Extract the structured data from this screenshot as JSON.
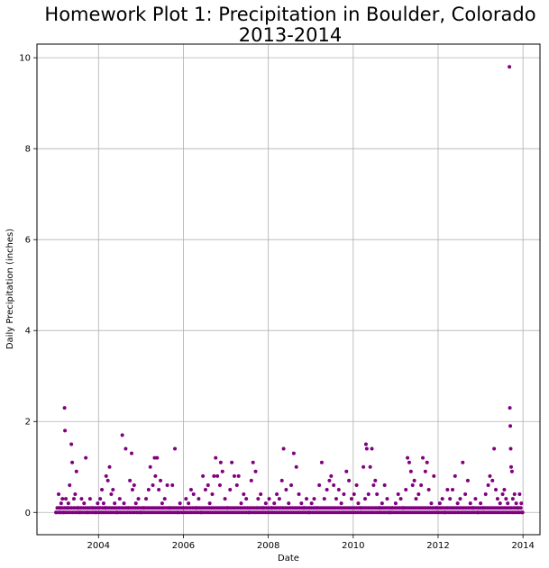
{
  "chart_data": {
    "type": "scatter",
    "title_line1": "Homework Plot 1: Precipitation in Boulder, Colorado",
    "title_line2": "2013-2014",
    "xlabel": "Date",
    "ylabel": "Daily Precipitation (inches)",
    "xlim": [
      2002.55,
      2014.4
    ],
    "ylim": [
      -0.49,
      10.3
    ],
    "x_ticks": [
      2004,
      2006,
      2008,
      2010,
      2012,
      2014
    ],
    "x_tick_labels": [
      "2004",
      "2006",
      "2008",
      "2010",
      "2012",
      "2014"
    ],
    "y_ticks": [
      0,
      2,
      4,
      6,
      8,
      10
    ],
    "y_tick_labels": [
      "0",
      "2",
      "4",
      "6",
      "8",
      "10"
    ],
    "grid": true,
    "marker_color": "#800080",
    "series": [
      {
        "points": [
          [
            2003.0,
            0.0
          ],
          [
            2003.06,
            0.4
          ],
          [
            2003.08,
            0.1
          ],
          [
            2003.1,
            0.0
          ],
          [
            2003.12,
            0.2
          ],
          [
            2003.15,
            0.3
          ],
          [
            2003.18,
            0.0
          ],
          [
            2003.2,
            2.3
          ],
          [
            2003.21,
            1.8
          ],
          [
            2003.23,
            0.3
          ],
          [
            2003.26,
            0.1
          ],
          [
            2003.29,
            0.2
          ],
          [
            2003.32,
            0.6
          ],
          [
            2003.36,
            1.5
          ],
          [
            2003.38,
            1.1
          ],
          [
            2003.42,
            0.3
          ],
          [
            2003.45,
            0.4
          ],
          [
            2003.48,
            0.9
          ],
          [
            2003.52,
            0.1
          ],
          [
            2003.56,
            0.0
          ],
          [
            2003.6,
            0.3
          ],
          [
            2003.66,
            0.2
          ],
          [
            2003.7,
            1.2
          ],
          [
            2003.74,
            0.0
          ],
          [
            2003.8,
            0.3
          ],
          [
            2003.86,
            0.1
          ],
          [
            2003.93,
            0.0
          ],
          [
            2003.98,
            0.2
          ],
          [
            2004.04,
            0.3
          ],
          [
            2004.08,
            0.5
          ],
          [
            2004.12,
            0.2
          ],
          [
            2004.16,
            0.1
          ],
          [
            2004.18,
            0.8
          ],
          [
            2004.22,
            0.7
          ],
          [
            2004.26,
            1.0
          ],
          [
            2004.3,
            0.4
          ],
          [
            2004.34,
            0.5
          ],
          [
            2004.38,
            0.2
          ],
          [
            2004.44,
            0.0
          ],
          [
            2004.5,
            0.3
          ],
          [
            2004.56,
            1.7
          ],
          [
            2004.6,
            0.2
          ],
          [
            2004.64,
            1.4
          ],
          [
            2004.7,
            0.1
          ],
          [
            2004.74,
            0.7
          ],
          [
            2004.78,
            1.3
          ],
          [
            2004.8,
            0.5
          ],
          [
            2004.84,
            0.6
          ],
          [
            2004.88,
            0.2
          ],
          [
            2004.94,
            0.3
          ],
          [
            2005.0,
            0.0
          ],
          [
            2005.06,
            0.1
          ],
          [
            2005.12,
            0.3
          ],
          [
            2005.18,
            0.5
          ],
          [
            2005.22,
            1.0
          ],
          [
            2005.28,
            0.6
          ],
          [
            2005.32,
            1.2
          ],
          [
            2005.34,
            0.8
          ],
          [
            2005.38,
            1.2
          ],
          [
            2005.42,
            0.5
          ],
          [
            2005.46,
            0.7
          ],
          [
            2005.5,
            0.2
          ],
          [
            2005.56,
            0.3
          ],
          [
            2005.62,
            0.6
          ],
          [
            2005.68,
            0.1
          ],
          [
            2005.74,
            0.6
          ],
          [
            2005.8,
            1.4
          ],
          [
            2005.86,
            0.0
          ],
          [
            2005.92,
            0.2
          ],
          [
            2006.0,
            0.1
          ],
          [
            2006.06,
            0.3
          ],
          [
            2006.12,
            0.2
          ],
          [
            2006.18,
            0.5
          ],
          [
            2006.24,
            0.4
          ],
          [
            2006.3,
            0.1
          ],
          [
            2006.36,
            0.3
          ],
          [
            2006.42,
            0.0
          ],
          [
            2006.46,
            0.8
          ],
          [
            2006.52,
            0.5
          ],
          [
            2006.58,
            0.6
          ],
          [
            2006.62,
            0.2
          ],
          [
            2006.68,
            0.4
          ],
          [
            2006.72,
            0.8
          ],
          [
            2006.76,
            1.2
          ],
          [
            2006.8,
            0.8
          ],
          [
            2006.86,
            0.6
          ],
          [
            2006.88,
            1.1
          ],
          [
            2006.92,
            0.9
          ],
          [
            2006.98,
            0.3
          ],
          [
            2007.04,
            0.1
          ],
          [
            2007.1,
            0.5
          ],
          [
            2007.14,
            1.1
          ],
          [
            2007.2,
            0.8
          ],
          [
            2007.26,
            0.6
          ],
          [
            2007.3,
            0.8
          ],
          [
            2007.36,
            0.2
          ],
          [
            2007.42,
            0.4
          ],
          [
            2007.48,
            0.3
          ],
          [
            2007.54,
            0.0
          ],
          [
            2007.6,
            0.7
          ],
          [
            2007.64,
            1.1
          ],
          [
            2007.7,
            0.9
          ],
          [
            2007.76,
            0.3
          ],
          [
            2007.82,
            0.4
          ],
          [
            2007.88,
            0.1
          ],
          [
            2007.94,
            0.2
          ],
          [
            2008.02,
            0.3
          ],
          [
            2008.08,
            0.1
          ],
          [
            2008.14,
            0.2
          ],
          [
            2008.2,
            0.4
          ],
          [
            2008.26,
            0.3
          ],
          [
            2008.32,
            0.7
          ],
          [
            2008.36,
            1.4
          ],
          [
            2008.42,
            0.5
          ],
          [
            2008.48,
            0.2
          ],
          [
            2008.54,
            0.6
          ],
          [
            2008.6,
            1.3
          ],
          [
            2008.66,
            1.0
          ],
          [
            2008.72,
            0.4
          ],
          [
            2008.78,
            0.2
          ],
          [
            2008.84,
            0.1
          ],
          [
            2008.9,
            0.3
          ],
          [
            2008.96,
            0.0
          ],
          [
            2009.02,
            0.2
          ],
          [
            2009.08,
            0.3
          ],
          [
            2009.14,
            0.1
          ],
          [
            2009.2,
            0.6
          ],
          [
            2009.26,
            1.1
          ],
          [
            2009.32,
            0.3
          ],
          [
            2009.38,
            0.5
          ],
          [
            2009.44,
            0.7
          ],
          [
            2009.48,
            0.8
          ],
          [
            2009.54,
            0.6
          ],
          [
            2009.6,
            0.3
          ],
          [
            2009.66,
            0.5
          ],
          [
            2009.72,
            0.2
          ],
          [
            2009.78,
            0.4
          ],
          [
            2009.84,
            0.9
          ],
          [
            2009.9,
            0.7
          ],
          [
            2009.96,
            0.3
          ],
          [
            2010.02,
            0.4
          ],
          [
            2010.08,
            0.6
          ],
          [
            2010.12,
            0.2
          ],
          [
            2010.18,
            0.1
          ],
          [
            2010.24,
            1.0
          ],
          [
            2010.28,
            0.3
          ],
          [
            2010.3,
            1.5
          ],
          [
            2010.32,
            1.4
          ],
          [
            2010.36,
            0.4
          ],
          [
            2010.4,
            1.0
          ],
          [
            2010.44,
            1.4
          ],
          [
            2010.48,
            0.6
          ],
          [
            2010.52,
            0.7
          ],
          [
            2010.56,
            0.4
          ],
          [
            2010.62,
            0.1
          ],
          [
            2010.68,
            0.2
          ],
          [
            2010.74,
            0.6
          ],
          [
            2010.8,
            0.3
          ],
          [
            2010.86,
            0.0
          ],
          [
            2010.92,
            0.1
          ],
          [
            2011.0,
            0.2
          ],
          [
            2011.06,
            0.4
          ],
          [
            2011.12,
            0.3
          ],
          [
            2011.18,
            0.1
          ],
          [
            2011.24,
            0.5
          ],
          [
            2011.28,
            1.2
          ],
          [
            2011.32,
            1.1
          ],
          [
            2011.36,
            0.9
          ],
          [
            2011.4,
            0.6
          ],
          [
            2011.44,
            0.7
          ],
          [
            2011.48,
            0.3
          ],
          [
            2011.54,
            0.4
          ],
          [
            2011.6,
            0.6
          ],
          [
            2011.64,
            1.2
          ],
          [
            2011.7,
            0.9
          ],
          [
            2011.74,
            1.1
          ],
          [
            2011.78,
            0.5
          ],
          [
            2011.84,
            0.2
          ],
          [
            2011.9,
            0.8
          ],
          [
            2011.96,
            0.1
          ],
          [
            2012.04,
            0.2
          ],
          [
            2012.1,
            0.3
          ],
          [
            2012.16,
            0.0
          ],
          [
            2012.22,
            0.5
          ],
          [
            2012.28,
            0.3
          ],
          [
            2012.34,
            0.5
          ],
          [
            2012.4,
            0.8
          ],
          [
            2012.46,
            0.2
          ],
          [
            2012.52,
            0.3
          ],
          [
            2012.58,
            1.1
          ],
          [
            2012.64,
            0.4
          ],
          [
            2012.7,
            0.7
          ],
          [
            2012.76,
            0.2
          ],
          [
            2012.82,
            0.1
          ],
          [
            2012.88,
            0.3
          ],
          [
            2012.94,
            0.0
          ],
          [
            2013.0,
            0.2
          ],
          [
            2013.06,
            0.1
          ],
          [
            2013.12,
            0.4
          ],
          [
            2013.18,
            0.6
          ],
          [
            2013.22,
            0.8
          ],
          [
            2013.28,
            0.7
          ],
          [
            2013.32,
            1.4
          ],
          [
            2013.36,
            0.5
          ],
          [
            2013.4,
            0.3
          ],
          [
            2013.46,
            0.2
          ],
          [
            2013.52,
            0.4
          ],
          [
            2013.56,
            0.5
          ],
          [
            2013.6,
            0.3
          ],
          [
            2013.64,
            0.2
          ],
          [
            2013.68,
            9.8
          ],
          [
            2013.69,
            2.3
          ],
          [
            2013.7,
            1.9
          ],
          [
            2013.71,
            1.4
          ],
          [
            2013.72,
            1.0
          ],
          [
            2013.74,
            0.9
          ],
          [
            2013.76,
            0.3
          ],
          [
            2013.8,
            0.4
          ],
          [
            2013.84,
            0.2
          ],
          [
            2013.88,
            0.1
          ],
          [
            2013.92,
            0.4
          ],
          [
            2013.96,
            0.2
          ],
          [
            2013.99,
            0.0
          ]
        ],
        "baseline_start": 2003.0,
        "baseline_end": 2014.0,
        "baseline_values": [
          0.0,
          0.1
        ]
      }
    ]
  }
}
